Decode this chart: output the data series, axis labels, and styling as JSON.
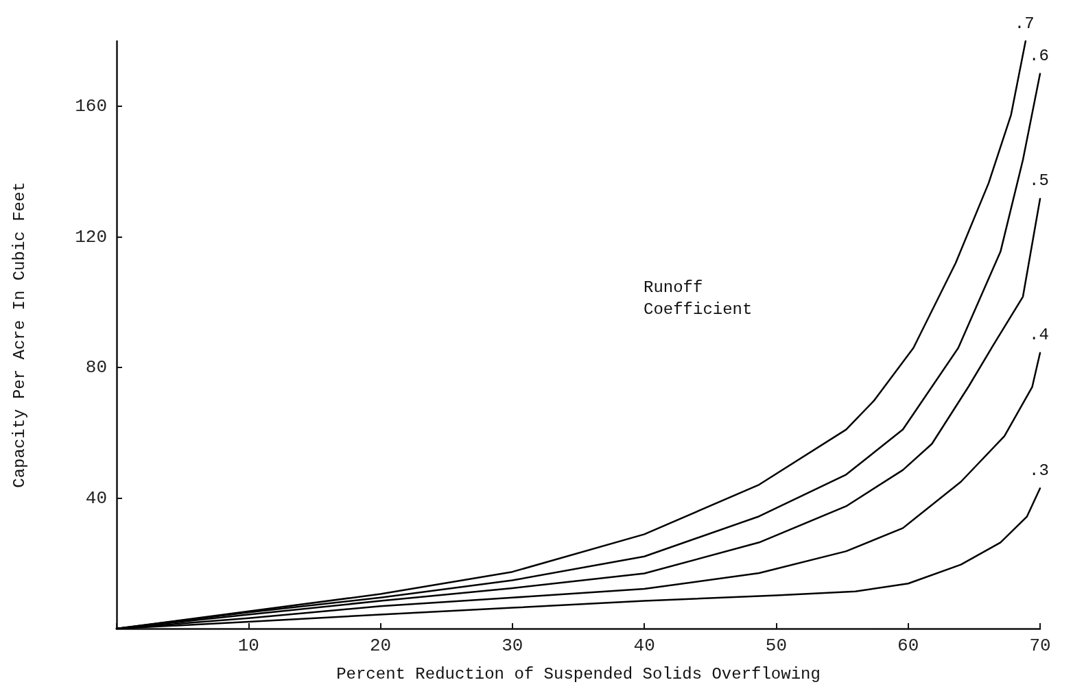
{
  "chart_data": {
    "type": "line",
    "xlabel": "Percent Reduction of Suspended Solids Overflowing",
    "ylabel": "Capacity Per Acre In Cubic Feet",
    "annotations": [
      "Runoff Coefficient"
    ],
    "xlim": [
      0,
      70
    ],
    "xticks": [
      {
        "value": 0,
        "label": null
      },
      10,
      20,
      30,
      40,
      50,
      60,
      70
    ],
    "ylim": [
      0,
      180
    ],
    "yticks": [
      {
        "value": 0,
        "label": null
      },
      40,
      80,
      120,
      160
    ],
    "grid": false,
    "legend": false,
    "marker": "none",
    "line_style": "solid",
    "series": [
      {
        "name": ".7",
        "color": "#000000",
        "x": [
          0,
          10,
          20,
          30,
          40,
          48.7,
          55.3,
          57.4,
          60.4,
          63.6,
          66.1,
          67.8,
          68.9
        ],
        "values": [
          0,
          5.3,
          10.6,
          17.4,
          28.9,
          44.1,
          61,
          69.8,
          86,
          112,
          136.5,
          157.4,
          180
        ]
      },
      {
        "name": ".6",
        "color": "#000000",
        "x": [
          0,
          10,
          20,
          30,
          40,
          48.7,
          55.3,
          59.6,
          63.8,
          67,
          68.7,
          70
        ],
        "values": [
          0,
          5,
          9.5,
          14.8,
          22.1,
          34.4,
          47.2,
          61,
          86,
          115.5,
          143.6,
          170
        ]
      },
      {
        "name": ".5",
        "color": "#000000",
        "x": [
          0,
          10,
          20,
          30,
          40,
          48.7,
          55.3,
          59.6,
          61.8,
          64.6,
          66.4,
          68.7,
          70
        ],
        "values": [
          0,
          4.3,
          8.5,
          12.4,
          16.9,
          26.4,
          37.5,
          48.6,
          56.6,
          74.3,
          86.5,
          101.7,
          131.7
        ]
      },
      {
        "name": ".4",
        "color": "#000000",
        "x": [
          0,
          10,
          20,
          30,
          40,
          48.7,
          55.3,
          59.6,
          64,
          67.3,
          69.4,
          70
        ],
        "values": [
          0,
          3.2,
          6.9,
          9.5,
          12.2,
          17,
          23.7,
          30.8,
          45,
          59,
          74,
          84.5
        ]
      },
      {
        "name": ".3",
        "color": "#000000",
        "x": [
          0,
          10,
          20,
          30,
          40,
          50,
          56,
          60,
          64,
          67,
          69,
          70
        ],
        "values": [
          0,
          2.1,
          4.3,
          6.4,
          8.5,
          10.2,
          11.4,
          13.8,
          19.6,
          26.4,
          34.3,
          43
        ]
      }
    ]
  }
}
